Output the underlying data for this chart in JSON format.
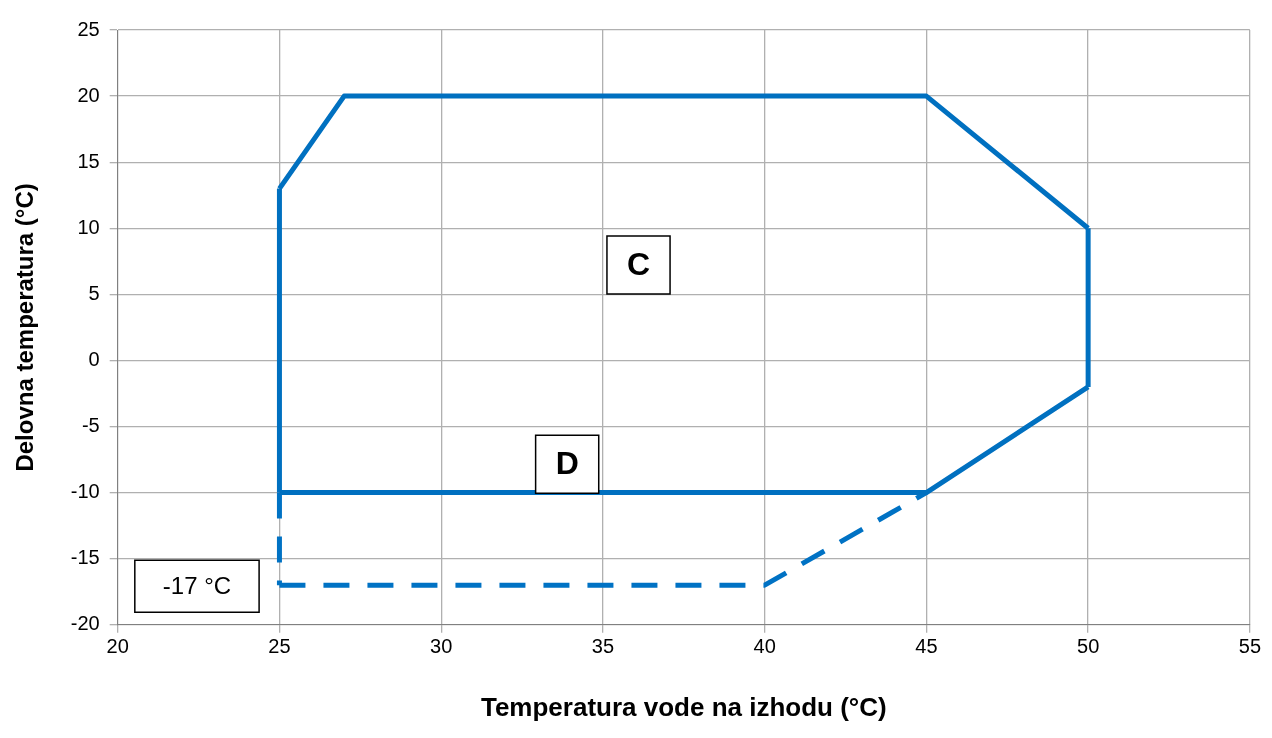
{
  "chart_data": {
    "type": "line",
    "xlabel": "Temperatura vode na izhodu (°C)",
    "ylabel": "Delovna temperatura (°C)",
    "series": [
      {
        "color": "#0070c0",
        "line_style": "solid",
        "x": [
          25,
          27,
          45,
          50
        ],
        "values": [
          13,
          20,
          20,
          10
        ]
      },
      {
        "color": "#0070c0",
        "line_style": "solid",
        "x": [
          25,
          45,
          50
        ],
        "values": [
          -10,
          -10,
          -2
        ]
      },
      {
        "color": "#0070c0",
        "line_style": "solid",
        "x": [
          25,
          25
        ],
        "values": [
          -10,
          13
        ]
      },
      {
        "color": "#0070c0",
        "line_style": "solid",
        "x": [
          50,
          50
        ],
        "values": [
          -2,
          10
        ]
      },
      {
        "color": "#0072c4",
        "line_style": "dashed",
        "x": [
          25,
          25
        ],
        "values": [
          -10,
          -17
        ]
      },
      {
        "color": "#0072c4",
        "line_style": "dashed",
        "x": [
          25,
          40,
          45
        ],
        "values": [
          -17,
          -17,
          -10
        ]
      }
    ],
    "xlim": [
      20,
      55
    ],
    "xticks": [
      20,
      25,
      30,
      35,
      40,
      45,
      50,
      55
    ],
    "ylim": [
      -20,
      25
    ],
    "yticks": [
      -20,
      -15,
      -10,
      -5,
      0,
      5,
      10,
      15,
      20,
      25
    ],
    "grid": true,
    "legend": false,
    "marker": "none",
    "annotations": [
      "C",
      "D",
      "-17 °C"
    ]
  }
}
